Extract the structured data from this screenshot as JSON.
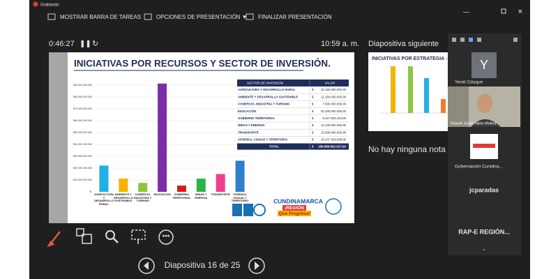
{
  "window": {
    "recording": "Grabando"
  },
  "toolbar": {
    "items": [
      "MOSTRAR BARRA DE TAREAS",
      "OPCIONES DE PRESENTACIÓN ▼",
      "FINALIZAR PRESENTACIÓN"
    ]
  },
  "presenter": {
    "timer": "0:46:27",
    "clock": "10:59 a. m.",
    "next_label": "Diapositiva siguiente",
    "next_title": "INICIATIVAS POR ESTRATEGIA - PD",
    "notes": "No hay ninguna nota",
    "slide_counter": "Diapositiva 16 de 25"
  },
  "slide": {
    "title": "INICIATIVAS POR RECURSOS Y SECTOR DE INVERSIÓN.",
    "chart": {
      "type": "bar",
      "categories": [
        "AGRICULTURA Y DESARROLLO RURAL",
        "AMBIENTE Y DESARROLLO SOSTENIBLE",
        "COMERCIO, INDUSTRIA Y TURISMO",
        "EDUCACIÓN",
        "GOBIERNO TERRITORIAL",
        "MINAS Y ENERGÍA",
        "TRANSPORTE",
        "VIVIENDA, CIUDAD Y TERRITORIO"
      ],
      "values": [
        22150000000,
        11164030045,
        7500000000,
        91300000000,
        5227603443,
        11100000000,
        15000000000,
        26247929038
      ],
      "colors": [
        "#1fb0e8",
        "#f4b400",
        "#8dc63f",
        "#7b2fa6",
        "#d7191c",
        "#2db34a",
        "#ef3e8f",
        "#2f7fd0"
      ],
      "ylim": [
        0,
        100000000000
      ],
      "yticks": [
        {
          "value": 0,
          "label": "$-"
        },
        {
          "value": 10000000000,
          "label": "$10.000.000.000"
        },
        {
          "value": 20000000000,
          "label": "$20.000.000.000"
        },
        {
          "value": 30000000000,
          "label": "$30.000.000.000"
        },
        {
          "value": 40000000000,
          "label": "$40.000.000.000"
        },
        {
          "value": 50000000000,
          "label": "$50.000.000.000"
        },
        {
          "value": 60000000000,
          "label": "$60.000.000.000"
        },
        {
          "value": 70000000000,
          "label": "$70.000.000.000"
        },
        {
          "value": 80000000000,
          "label": "$80.000.000.000"
        },
        {
          "value": 90000000000,
          "label": "$90.000.000.000"
        }
      ],
      "grid": true
    },
    "table": {
      "header": [
        "SECTOR DE INVERSIÓN",
        "VALOR"
      ],
      "rows": [
        [
          "AGRICULTURA Y DESARROLLO RURAL",
          "$",
          "22.150.000.000,00"
        ],
        [
          "AMBIENTE Y DESARROLLO SOSTENIBLE",
          "$",
          "11.164.030.045,00"
        ],
        [
          "COMERCIO, INDUSTRIA Y TURISMO",
          "$",
          "7.500.000.000,00"
        ],
        [
          "EDUCACIÓN",
          "$",
          "91.300.000.000,00"
        ],
        [
          "GOBIERNO TERRITORIAL",
          "$",
          "5.227.603.443,00"
        ],
        [
          "MINAS Y ENERGÍA",
          "$",
          "11.100.000.000,00"
        ],
        [
          "TRANSPORTE",
          "$",
          "15.000.000.000,00"
        ],
        [
          "VIVIENDA, CIUDAD Y TERRITORIO",
          "$",
          "26.247.929.038,00"
        ]
      ],
      "total": [
        "TOTAL",
        "$",
        "189.689.562.527,00"
      ]
    },
    "logos": [
      "CUNDINAMARCA",
      "¡REGIÓN",
      "Que Progresa!"
    ]
  },
  "participants": [
    {
      "initial": "Y",
      "name": "Yesid Cduque"
    },
    {
      "name": "Ruavel Jaime Nieto Molina"
    },
    {
      "name": "Gobernación Cundina..."
    },
    {
      "name": "jcparadas"
    },
    {
      "name": "RAP-E REGIÓN..."
    }
  ]
}
